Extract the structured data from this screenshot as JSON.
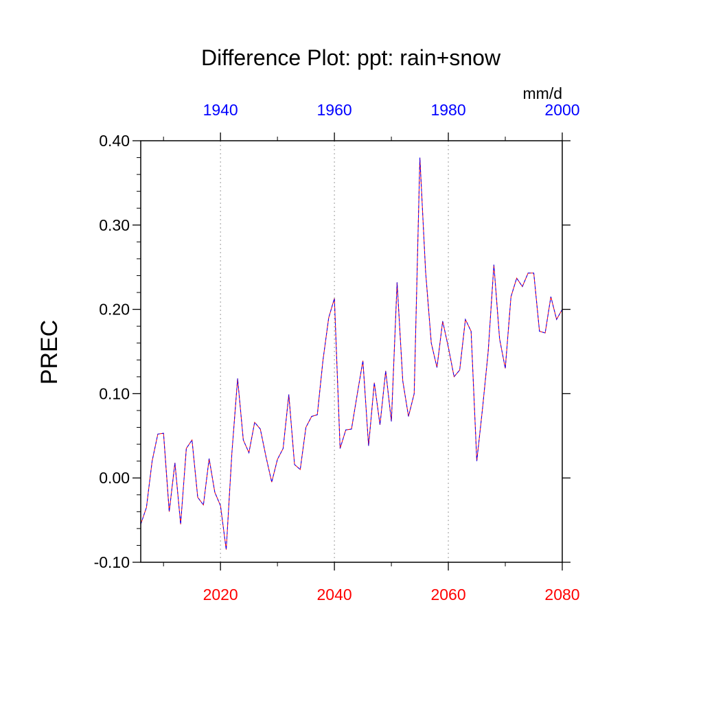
{
  "chart_data": {
    "type": "line",
    "title": "Difference Plot: ppt: rain+snow",
    "ylabel": "PREC",
    "units": "mm/d",
    "ylim": [
      -0.1,
      0.4
    ],
    "yticks": [
      "0.40",
      "0.30",
      "0.20",
      "0.10",
      "0.00",
      "-0.10"
    ],
    "bottom_axis": {
      "color": "#ff0000",
      "range": [
        2006,
        2080
      ],
      "ticks": [
        "2020",
        "2040",
        "2060",
        "2080"
      ]
    },
    "top_axis": {
      "color": "#0000ff",
      "range": [
        1926,
        2000
      ],
      "ticks": [
        "1940",
        "1960",
        "1980",
        "2000"
      ]
    },
    "grid": "vertical dotted at major bottom-axis ticks",
    "series": [
      {
        "colors": [
          "#ff0000",
          "#0000ff"
        ],
        "style": "dashed",
        "x": [
          2006,
          2007,
          2008,
          2009,
          2010,
          2011,
          2012,
          2013,
          2014,
          2015,
          2016,
          2017,
          2018,
          2019,
          2020,
          2021,
          2022,
          2023,
          2024,
          2025,
          2026,
          2027,
          2028,
          2029,
          2030,
          2031,
          2032,
          2033,
          2034,
          2035,
          2036,
          2037,
          2038,
          2039,
          2040,
          2041,
          2042,
          2043,
          2044,
          2045,
          2046,
          2047,
          2048,
          2049,
          2050,
          2051,
          2052,
          2053,
          2054,
          2055,
          2056,
          2057,
          2058,
          2059,
          2060,
          2061,
          2062,
          2063,
          2064,
          2065,
          2066,
          2067,
          2068,
          2069,
          2070,
          2071,
          2072,
          2073,
          2074,
          2075,
          2076,
          2077,
          2078,
          2079,
          2080
        ],
        "y": [
          -0.055,
          -0.035,
          0.02,
          0.052,
          0.053,
          -0.04,
          0.018,
          -0.055,
          0.035,
          0.045,
          -0.023,
          -0.032,
          0.023,
          -0.017,
          -0.033,
          -0.085,
          0.03,
          0.118,
          0.045,
          0.03,
          0.066,
          0.058,
          0.025,
          -0.005,
          0.022,
          0.035,
          0.099,
          0.016,
          0.01,
          0.06,
          0.073,
          0.075,
          0.14,
          0.19,
          0.213,
          0.035,
          0.057,
          0.058,
          0.099,
          0.139,
          0.038,
          0.113,
          0.063,
          0.127,
          0.067,
          0.232,
          0.115,
          0.073,
          0.1,
          0.38,
          0.245,
          0.16,
          0.131,
          0.186,
          0.155,
          0.12,
          0.128,
          0.188,
          0.174,
          0.02,
          0.082,
          0.15,
          0.253,
          0.165,
          0.13,
          0.215,
          0.237,
          0.227,
          0.243,
          0.243,
          0.174,
          0.172,
          0.215,
          0.188,
          0.2
        ]
      }
    ]
  }
}
